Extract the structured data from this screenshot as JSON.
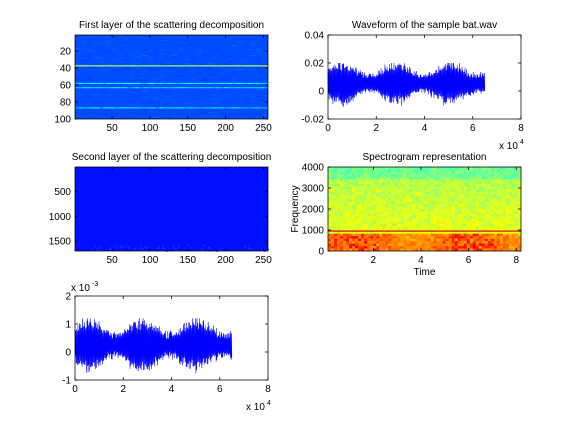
{
  "chart_data": [
    {
      "type": "heatmap",
      "title": "First layer of the scattering decomposition",
      "xlabel": "",
      "ylabel": "",
      "xlim": [
        1,
        256
      ],
      "ylim": [
        1,
        100
      ],
      "y_reversed": true,
      "xticks": [
        50,
        100,
        150,
        200,
        250
      ],
      "yticks": [
        20,
        40,
        60,
        80,
        100
      ],
      "colormap": "jet",
      "background_level": 0.2,
      "bright_rows": [
        {
          "row": 37,
          "level": 0.55
        },
        {
          "row": 58,
          "level": 0.35
        },
        {
          "row": 63,
          "level": 0.33
        },
        {
          "row": 87,
          "level": 0.33
        }
      ]
    },
    {
      "type": "line",
      "title": "Waveform of the sample bat.wav",
      "xlabel": "",
      "ylabel": "",
      "xlim": [
        0,
        80000
      ],
      "ylim": [
        -0.02,
        0.04
      ],
      "xticks": [
        0,
        2,
        4,
        6,
        8
      ],
      "yticks": [
        -0.02,
        0,
        0.02,
        0.04
      ],
      "x_exponent": "x 10",
      "x_exponent_power": "4",
      "series": [
        {
          "color": "#0000ff",
          "x_range": [
            0,
            65000
          ],
          "center": 0.0055,
          "amplitude_range": [
            -0.012,
            0.02
          ]
        }
      ]
    },
    {
      "type": "heatmap",
      "title": "Second layer of the scattering decomposition",
      "xlabel": "",
      "ylabel": "",
      "xlim": [
        1,
        256
      ],
      "ylim": [
        1,
        1700
      ],
      "y_reversed": true,
      "xticks": [
        50,
        100,
        150,
        200,
        250
      ],
      "yticks": [
        500,
        1000,
        1500
      ],
      "colormap": "jet",
      "background_level": 0.14
    },
    {
      "type": "heatmap",
      "title": "Spectrogram representation",
      "xlabel": "Time",
      "ylabel": "Frequency",
      "xlim": [
        0.1,
        8.2
      ],
      "ylim": [
        0,
        4000
      ],
      "xticks": [
        2,
        4,
        6,
        8
      ],
      "yticks": [
        0,
        1000,
        2000,
        3000,
        4000
      ],
      "colormap": "jet",
      "line_frequency": 950
    },
    {
      "type": "line",
      "title": "",
      "xlabel": "",
      "ylabel": "",
      "xlim": [
        0,
        80000
      ],
      "ylim": [
        -1,
        2
      ],
      "xticks": [
        0,
        2,
        4,
        6,
        8
      ],
      "yticks": [
        -1,
        0,
        1,
        2
      ],
      "x_exponent": "x 10",
      "x_exponent_power": "4",
      "y_exponent": "x 10",
      "y_exponent_power": "-3",
      "series": [
        {
          "color": "#0000ff",
          "x_range": [
            0,
            65000
          ],
          "center": 0.25,
          "amplitude_range": [
            -0.85,
            1.2
          ]
        }
      ]
    }
  ]
}
